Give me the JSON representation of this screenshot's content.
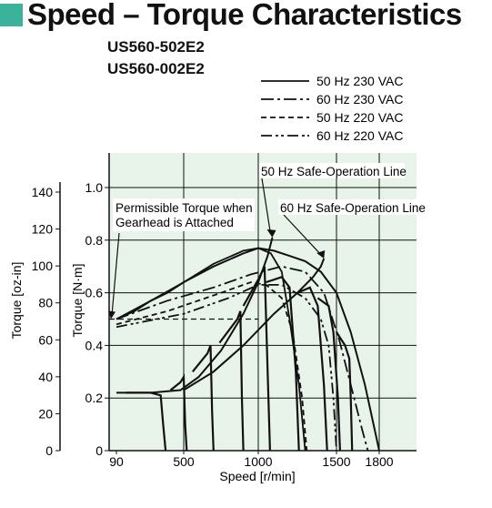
{
  "title": "Speed – Torque Characteristics",
  "colors": {
    "title_square": "#3bb39a",
    "plot_background": "#e8f3ea",
    "line": "#111111"
  },
  "models": [
    "US560-502E2",
    "US560-002E2"
  ],
  "legend": [
    {
      "label": "50 Hz 230 VAC",
      "style": "solid"
    },
    {
      "label": "60 Hz 230 VAC",
      "style": "dash-dot"
    },
    {
      "label": "50 Hz 220 VAC",
      "style": "dashed"
    },
    {
      "label": "60 Hz 220 VAC",
      "style": "dash-dot-dot"
    }
  ],
  "annotations": {
    "permissible_line1": "Permissible Torque when",
    "permissible_line2": "Gearhead is Attached",
    "safe_50": "50 Hz Safe-Operation Line",
    "safe_60": "60 Hz Safe-Operation Line"
  },
  "chart_data": {
    "type": "line",
    "xlabel": "Speed [r/min]",
    "ylabel_left": "Torque [oz-in]",
    "ylabel_right": "Torque [N·m]",
    "xlim": [
      90,
      1800
    ],
    "ylim_nm": [
      0,
      1.2
    ],
    "ylim_ozin": [
      0,
      170
    ],
    "x_ticks": [
      {
        "label": "90",
        "value": 90
      },
      {
        "label": "500",
        "value": 500
      },
      {
        "label": "1000",
        "value": 1000
      },
      {
        "label": "1500",
        "value": 1500
      },
      {
        "label": "1800",
        "value": 1800
      }
    ],
    "y_ticks_nm": [
      "0",
      "0.2",
      "0.4",
      "0.6",
      "0.8",
      "1.0"
    ],
    "y_ticks_ozin": [
      "0",
      "20",
      "40",
      "60",
      "80",
      "100",
      "120",
      "140"
    ],
    "grid": true,
    "permissible_torque_nm": 0.5,
    "series": [
      {
        "name": "50 Hz 230 VAC",
        "style": "solid",
        "x": [
          90,
          300,
          500,
          700,
          900,
          1000,
          1080,
          1150,
          1200,
          1260,
          1300
        ],
        "y": [
          0.5,
          0.57,
          0.64,
          0.71,
          0.76,
          0.77,
          0.75,
          0.68,
          0.5,
          0.25,
          0
        ]
      },
      {
        "name": "60 Hz 230 VAC",
        "style": "dash-dot",
        "x": [
          90,
          400,
          700,
          950,
          1150,
          1300,
          1420,
          1520,
          1600,
          1680,
          1720
        ],
        "y": [
          0.5,
          0.57,
          0.62,
          0.67,
          0.7,
          0.68,
          0.6,
          0.42,
          0.25,
          0.08,
          0
        ]
      },
      {
        "name": "50 Hz 220 VAC",
        "style": "dashed",
        "x": [
          90,
          400,
          700,
          950,
          1050,
          1150,
          1220,
          1280,
          1310
        ],
        "y": [
          0.48,
          0.53,
          0.59,
          0.64,
          0.63,
          0.58,
          0.45,
          0.2,
          0
        ]
      },
      {
        "name": "60 Hz 220 VAC",
        "style": "dash-dot-dot",
        "x": [
          90,
          500,
          800,
          1000,
          1150,
          1300,
          1400,
          1450,
          1480,
          1500
        ],
        "y": [
          0.47,
          0.52,
          0.58,
          0.63,
          0.63,
          0.58,
          0.5,
          0.4,
          0.2,
          0
        ]
      }
    ],
    "upper_line": {
      "x": [
        90,
        200,
        300,
        400,
        500,
        700,
        900,
        1000,
        1100,
        1200,
        1300,
        1400,
        1500,
        1600,
        1700,
        1800
      ],
      "y": [
        0.5,
        0.53,
        0.57,
        0.6,
        0.64,
        0.7,
        0.75,
        0.77,
        0.76,
        0.74,
        0.72,
        0.68,
        0.6,
        0.45,
        0.25,
        0
      ]
    },
    "safe_operation_50hz": {
      "x": [
        90,
        300,
        480,
        600,
        750,
        900,
        1000,
        1060,
        1090
      ],
      "y": [
        0.22,
        0.22,
        0.23,
        0.28,
        0.38,
        0.52,
        0.64,
        0.74,
        0.81
      ]
    },
    "safe_operation_60hz": {
      "x": [
        500,
        700,
        900,
        1100,
        1250,
        1350,
        1400,
        1420
      ],
      "y": [
        0.23,
        0.3,
        0.4,
        0.52,
        0.6,
        0.66,
        0.7,
        0.73
      ]
    },
    "droop_curves": [
      {
        "x": [
          150,
          300,
          360,
          375,
          390
        ],
        "y": [
          0.22,
          0.22,
          0.21,
          0.1,
          0
        ]
      },
      {
        "x": [
          420,
          480,
          500,
          510,
          520
        ],
        "y": [
          0.23,
          0.26,
          0.28,
          0.1,
          0
        ]
      },
      {
        "x": [
          560,
          660,
          680,
          690,
          700
        ],
        "y": [
          0.3,
          0.37,
          0.4,
          0.15,
          0
        ]
      },
      {
        "x": [
          740,
          860,
          880,
          890,
          900
        ],
        "y": [
          0.41,
          0.5,
          0.53,
          0.2,
          0
        ]
      },
      {
        "x": [
          900,
          1000,
          1040,
          1060,
          1075
        ],
        "y": [
          0.55,
          0.65,
          0.7,
          0.3,
          0
        ]
      },
      {
        "x": [
          1050,
          1150,
          1200,
          1240,
          1260
        ],
        "y": [
          0.64,
          0.66,
          0.62,
          0.3,
          0
        ]
      },
      {
        "x": [
          1250,
          1330,
          1380,
          1420,
          1440
        ],
        "y": [
          0.6,
          0.62,
          0.55,
          0.25,
          0
        ]
      },
      {
        "x": [
          1380,
          1450,
          1480,
          1510,
          1525
        ],
        "y": [
          0.58,
          0.55,
          0.45,
          0.2,
          0
        ]
      },
      {
        "x": [
          1500,
          1560,
          1590,
          1600,
          1610
        ],
        "y": [
          0.45,
          0.4,
          0.35,
          0.2,
          0
        ]
      }
    ]
  }
}
